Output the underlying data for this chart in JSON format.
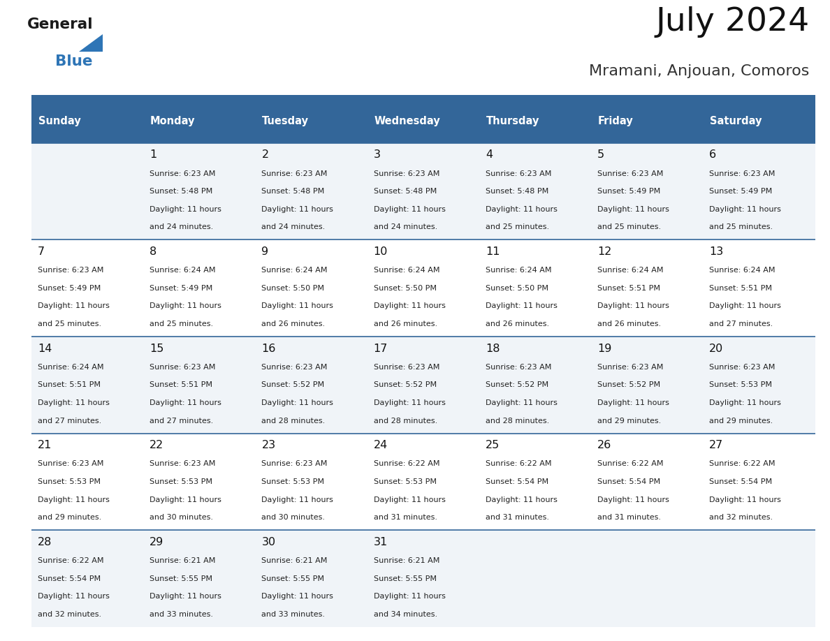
{
  "title": "July 2024",
  "subtitle": "Mramani, Anjouan, Comoros",
  "days_of_week": [
    "Sunday",
    "Monday",
    "Tuesday",
    "Wednesday",
    "Thursday",
    "Friday",
    "Saturday"
  ],
  "header_bg": "#336699",
  "header_text": "#ffffff",
  "row_bg_even": "#f0f4f8",
  "row_bg_odd": "#ffffff",
  "cell_text_color": "#222222",
  "day_num_color": "#111111",
  "border_color": "#336699",
  "title_color": "#111111",
  "subtitle_color": "#333333",
  "logo_general_color": "#1a1a1a",
  "logo_blue_color": "#2e75b6",
  "weeks": [
    [
      {
        "date": "",
        "sunrise": "",
        "sunset": "",
        "daylight_h": "",
        "daylight_m": ""
      },
      {
        "date": "1",
        "sunrise": "6:23 AM",
        "sunset": "5:48 PM",
        "daylight_h": "11",
        "daylight_m": "24"
      },
      {
        "date": "2",
        "sunrise": "6:23 AM",
        "sunset": "5:48 PM",
        "daylight_h": "11",
        "daylight_m": "24"
      },
      {
        "date": "3",
        "sunrise": "6:23 AM",
        "sunset": "5:48 PM",
        "daylight_h": "11",
        "daylight_m": "24"
      },
      {
        "date": "4",
        "sunrise": "6:23 AM",
        "sunset": "5:48 PM",
        "daylight_h": "11",
        "daylight_m": "25"
      },
      {
        "date": "5",
        "sunrise": "6:23 AM",
        "sunset": "5:49 PM",
        "daylight_h": "11",
        "daylight_m": "25"
      },
      {
        "date": "6",
        "sunrise": "6:23 AM",
        "sunset": "5:49 PM",
        "daylight_h": "11",
        "daylight_m": "25"
      }
    ],
    [
      {
        "date": "7",
        "sunrise": "6:23 AM",
        "sunset": "5:49 PM",
        "daylight_h": "11",
        "daylight_m": "25"
      },
      {
        "date": "8",
        "sunrise": "6:24 AM",
        "sunset": "5:49 PM",
        "daylight_h": "11",
        "daylight_m": "25"
      },
      {
        "date": "9",
        "sunrise": "6:24 AM",
        "sunset": "5:50 PM",
        "daylight_h": "11",
        "daylight_m": "26"
      },
      {
        "date": "10",
        "sunrise": "6:24 AM",
        "sunset": "5:50 PM",
        "daylight_h": "11",
        "daylight_m": "26"
      },
      {
        "date": "11",
        "sunrise": "6:24 AM",
        "sunset": "5:50 PM",
        "daylight_h": "11",
        "daylight_m": "26"
      },
      {
        "date": "12",
        "sunrise": "6:24 AM",
        "sunset": "5:51 PM",
        "daylight_h": "11",
        "daylight_m": "26"
      },
      {
        "date": "13",
        "sunrise": "6:24 AM",
        "sunset": "5:51 PM",
        "daylight_h": "11",
        "daylight_m": "27"
      }
    ],
    [
      {
        "date": "14",
        "sunrise": "6:24 AM",
        "sunset": "5:51 PM",
        "daylight_h": "11",
        "daylight_m": "27"
      },
      {
        "date": "15",
        "sunrise": "6:23 AM",
        "sunset": "5:51 PM",
        "daylight_h": "11",
        "daylight_m": "27"
      },
      {
        "date": "16",
        "sunrise": "6:23 AM",
        "sunset": "5:52 PM",
        "daylight_h": "11",
        "daylight_m": "28"
      },
      {
        "date": "17",
        "sunrise": "6:23 AM",
        "sunset": "5:52 PM",
        "daylight_h": "11",
        "daylight_m": "28"
      },
      {
        "date": "18",
        "sunrise": "6:23 AM",
        "sunset": "5:52 PM",
        "daylight_h": "11",
        "daylight_m": "28"
      },
      {
        "date": "19",
        "sunrise": "6:23 AM",
        "sunset": "5:52 PM",
        "daylight_h": "11",
        "daylight_m": "29"
      },
      {
        "date": "20",
        "sunrise": "6:23 AM",
        "sunset": "5:53 PM",
        "daylight_h": "11",
        "daylight_m": "29"
      }
    ],
    [
      {
        "date": "21",
        "sunrise": "6:23 AM",
        "sunset": "5:53 PM",
        "daylight_h": "11",
        "daylight_m": "29"
      },
      {
        "date": "22",
        "sunrise": "6:23 AM",
        "sunset": "5:53 PM",
        "daylight_h": "11",
        "daylight_m": "30"
      },
      {
        "date": "23",
        "sunrise": "6:23 AM",
        "sunset": "5:53 PM",
        "daylight_h": "11",
        "daylight_m": "30"
      },
      {
        "date": "24",
        "sunrise": "6:22 AM",
        "sunset": "5:53 PM",
        "daylight_h": "11",
        "daylight_m": "31"
      },
      {
        "date": "25",
        "sunrise": "6:22 AM",
        "sunset": "5:54 PM",
        "daylight_h": "11",
        "daylight_m": "31"
      },
      {
        "date": "26",
        "sunrise": "6:22 AM",
        "sunset": "5:54 PM",
        "daylight_h": "11",
        "daylight_m": "31"
      },
      {
        "date": "27",
        "sunrise": "6:22 AM",
        "sunset": "5:54 PM",
        "daylight_h": "11",
        "daylight_m": "32"
      }
    ],
    [
      {
        "date": "28",
        "sunrise": "6:22 AM",
        "sunset": "5:54 PM",
        "daylight_h": "11",
        "daylight_m": "32"
      },
      {
        "date": "29",
        "sunrise": "6:21 AM",
        "sunset": "5:55 PM",
        "daylight_h": "11",
        "daylight_m": "33"
      },
      {
        "date": "30",
        "sunrise": "6:21 AM",
        "sunset": "5:55 PM",
        "daylight_h": "11",
        "daylight_m": "33"
      },
      {
        "date": "31",
        "sunrise": "6:21 AM",
        "sunset": "5:55 PM",
        "daylight_h": "11",
        "daylight_m": "34"
      },
      {
        "date": "",
        "sunrise": "",
        "sunset": "",
        "daylight_h": "",
        "daylight_m": ""
      },
      {
        "date": "",
        "sunrise": "",
        "sunset": "",
        "daylight_h": "",
        "daylight_m": ""
      },
      {
        "date": "",
        "sunrise": "",
        "sunset": "",
        "daylight_h": "",
        "daylight_m": ""
      }
    ]
  ]
}
